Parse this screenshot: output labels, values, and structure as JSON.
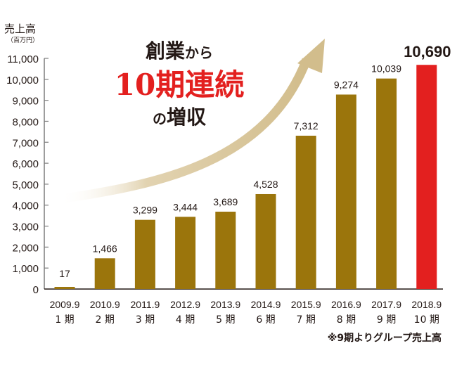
{
  "chart_data": {
    "type": "bar",
    "title": "",
    "ylabel": "売上高",
    "yunit": "（百万円）",
    "xlabel": "",
    "ylim": [
      0,
      11000
    ],
    "yticks": [
      0,
      1000,
      2000,
      3000,
      4000,
      5000,
      6000,
      7000,
      8000,
      9000,
      10000,
      11000
    ],
    "ytick_labels": [
      "0",
      "1,000",
      "2,000",
      "3,000",
      "4,000",
      "5,000",
      "6,000",
      "7,000",
      "8,000",
      "9,000",
      "10,000",
      "11,000"
    ],
    "categories": [
      "2009.9",
      "2010.9",
      "2011.9",
      "2012.9",
      "2013.9",
      "2014.9",
      "2015.9",
      "2016.9",
      "2017.9",
      "2018.9"
    ],
    "periods": [
      "1 期",
      "2 期",
      "3 期",
      "4 期",
      "5 期",
      "6 期",
      "7 期",
      "8 期",
      "9 期",
      "10 期"
    ],
    "values": [
      17,
      1466,
      3299,
      3444,
      3689,
      4528,
      7312,
      9274,
      10039,
      10690
    ],
    "value_labels": [
      "17",
      "1,466",
      "3,299",
      "3,444",
      "3,689",
      "4,528",
      "7,312",
      "9,274",
      "10,039",
      "10,690"
    ],
    "highlight_index": 9,
    "grid": false,
    "colors": {
      "bar": "#9b750c",
      "highlight": "#e3201f",
      "arrow": "#d7c49a",
      "axis": "#7d7d7d"
    }
  },
  "headline": {
    "line1_main": "創業",
    "line1_small": "から",
    "line2": "10期連続",
    "line3_small": "の",
    "line3_main": "増収"
  },
  "note": "※9期よりグループ売上高"
}
